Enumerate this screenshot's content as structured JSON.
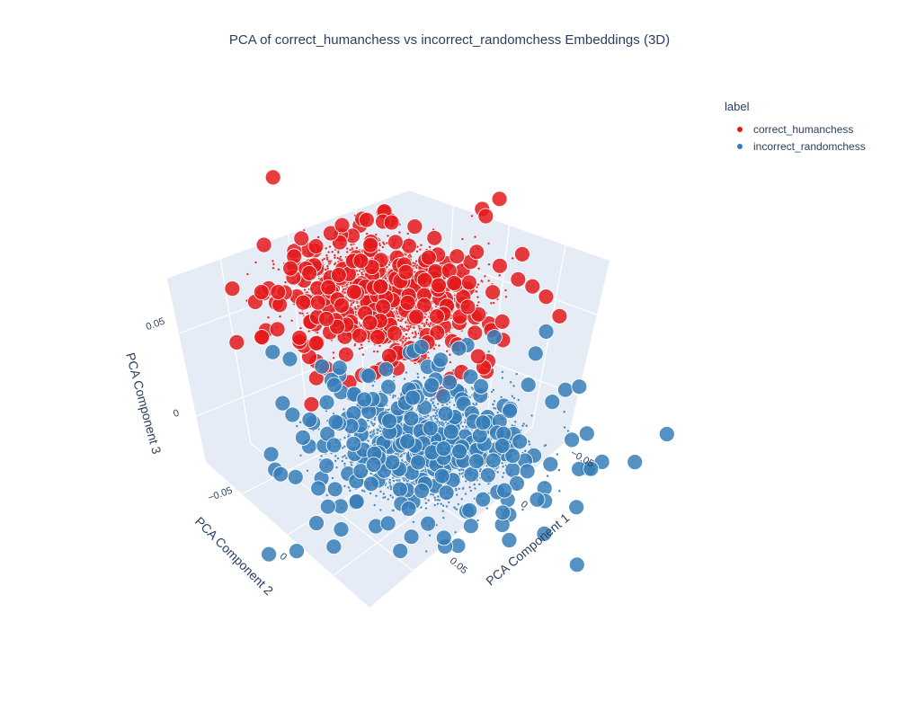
{
  "chart_data": {
    "type": "scatter",
    "title": "PCA of correct_humanchess vs incorrect_randomchess Embeddings (3D)",
    "xlabel": "PCA Component 1",
    "ylabel": "PCA Component 2",
    "zlabel": "PCA Component 3",
    "x_ticks": [
      "−0.05",
      "0",
      "0.05"
    ],
    "y_ticks": [
      "−0.05",
      "0"
    ],
    "z_ticks": [
      "0",
      "0.05"
    ],
    "legend": {
      "title": "label",
      "placement": "top-right"
    },
    "series": [
      {
        "name": "correct_humanchess",
        "color": "#e41a1c",
        "center": {
          "x": -0.02,
          "y": 0.03,
          "z": 0.035
        },
        "spread": {
          "x": 0.03,
          "y": 0.035,
          "z": 0.015
        }
      },
      {
        "name": "incorrect_randomchess",
        "color": "#377eb8",
        "center": {
          "x": 0.02,
          "y": -0.025,
          "z": 0.0
        },
        "spread": {
          "x": 0.035,
          "y": 0.035,
          "z": 0.02
        }
      }
    ],
    "scene_background": "#e5ecf6",
    "grid": true
  }
}
